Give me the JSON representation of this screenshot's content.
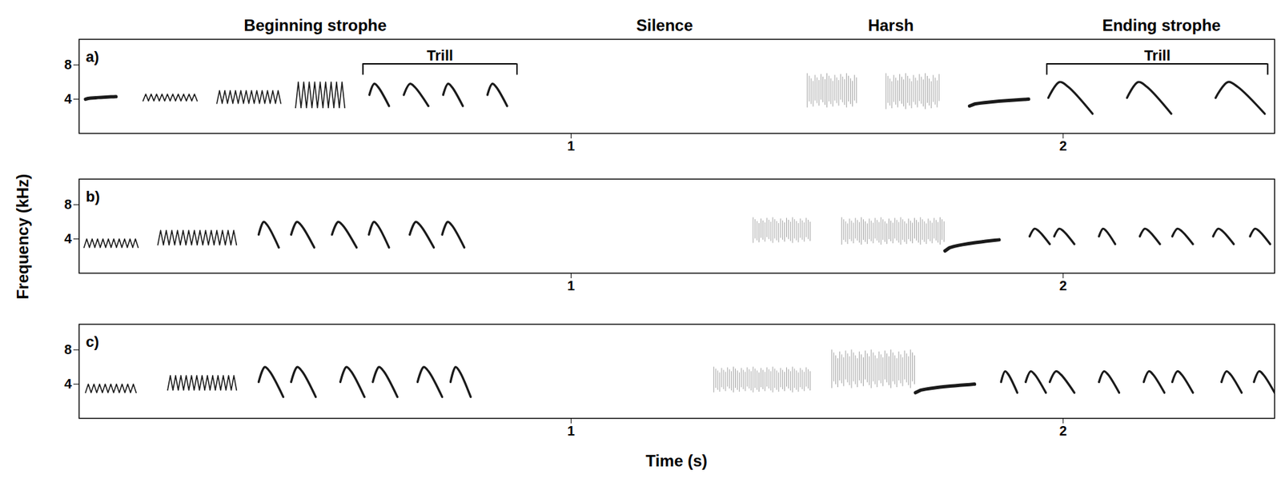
{
  "chart_data": {
    "type": "spectrogram",
    "xlabel": "Time (s)",
    "ylabel": "Frequency (kHz)",
    "xlim": [
      0,
      2.43
    ],
    "ylim": [
      0,
      11
    ],
    "xticks": [
      1,
      2
    ],
    "yticks": [
      4,
      8
    ],
    "color": "#1a1a1a",
    "sections": [
      {
        "label": "Beginning strophe",
        "x": 0.48
      },
      {
        "label": "Silence",
        "x": 1.19
      },
      {
        "label": "Harsh",
        "x": 1.65
      },
      {
        "label": "Ending strophe",
        "x": 2.2
      }
    ],
    "panels": [
      {
        "label": "a)",
        "brackets": [
          {
            "label": "Trill",
            "start": 0.577,
            "end": 0.89
          },
          {
            "label": "Trill",
            "start": 1.967,
            "end": 2.416
          }
        ],
        "elements": {
          "kind": [
            "tone",
            "trill",
            "trill",
            "trill",
            "note",
            "note",
            "note",
            "note",
            "harsh",
            "harsh",
            "tone",
            "note",
            "note",
            "note"
          ],
          "start": [
            0.013,
            0.13,
            0.28,
            0.44,
            0.59,
            0.66,
            0.74,
            0.83,
            1.48,
            1.64,
            1.81,
            1.97,
            2.13,
            2.31
          ],
          "end": [
            0.075,
            0.24,
            0.41,
            0.54,
            0.63,
            0.71,
            0.78,
            0.87,
            1.58,
            1.75,
            1.93,
            2.06,
            2.22,
            2.41
          ],
          "f_low": [
            4.0,
            3.8,
            3.5,
            3.0,
            3.2,
            3.2,
            3.2,
            3.2,
            3.0,
            2.8,
            3.2,
            2.3,
            2.3,
            2.3
          ],
          "f_high": [
            4.3,
            4.6,
            5.0,
            6.0,
            5.8,
            5.8,
            5.8,
            5.8,
            7.0,
            7.0,
            4.0,
            6.0,
            6.0,
            6.0
          ]
        }
      },
      {
        "label": "b)",
        "brackets": [],
        "elements": {
          "kind": [
            "trill",
            "trill",
            "note",
            "note",
            "note",
            "note",
            "note",
            "note",
            "harsh",
            "harsh",
            "tone",
            "note",
            "note",
            "note",
            "note",
            "note",
            "note",
            "note"
          ],
          "start": [
            0.01,
            0.16,
            0.365,
            0.431,
            0.514,
            0.589,
            0.672,
            0.738,
            1.37,
            1.55,
            1.76,
            1.932,
            1.982,
            2.073,
            2.156,
            2.222,
            2.305,
            2.38
          ],
          "end": [
            0.12,
            0.32,
            0.406,
            0.478,
            0.564,
            0.63,
            0.721,
            0.783,
            1.49,
            1.76,
            1.87,
            1.973,
            2.023,
            2.106,
            2.197,
            2.264,
            2.347,
            2.421
          ],
          "f_low": [
            3.0,
            3.3,
            3.0,
            3.0,
            3.0,
            3.0,
            3.0,
            3.0,
            3.5,
            3.3,
            2.6,
            3.4,
            3.4,
            3.4,
            3.4,
            3.4,
            3.4,
            3.4
          ],
          "f_high": [
            4.0,
            5.0,
            6.0,
            6.0,
            6.0,
            6.0,
            6.0,
            6.0,
            6.5,
            6.5,
            3.9,
            5.2,
            5.2,
            5.2,
            5.2,
            5.2,
            5.2,
            5.2
          ]
        }
      },
      {
        "label": "c)",
        "brackets": [],
        "elements": {
          "kind": [
            "trill",
            "trill",
            "note",
            "note",
            "note",
            "note",
            "note",
            "note",
            "harsh",
            "harsh",
            "tone",
            "note",
            "note",
            "note",
            "note",
            "note",
            "note",
            "note",
            "note"
          ],
          "start": [
            0.013,
            0.18,
            0.365,
            0.431,
            0.531,
            0.597,
            0.688,
            0.755,
            1.29,
            1.53,
            1.7,
            1.874,
            1.924,
            1.973,
            2.073,
            2.164,
            2.222,
            2.322,
            2.388
          ],
          "end": [
            0.116,
            0.32,
            0.415,
            0.481,
            0.58,
            0.647,
            0.738,
            0.796,
            1.49,
            1.7,
            1.82,
            1.907,
            1.965,
            2.023,
            2.114,
            2.206,
            2.264,
            2.363,
            2.43
          ],
          "f_low": [
            3.0,
            3.3,
            2.5,
            2.5,
            2.5,
            2.5,
            2.5,
            2.5,
            3.0,
            3.5,
            3.0,
            3.0,
            3.0,
            3.0,
            3.0,
            3.0,
            3.0,
            3.0,
            3.0
          ],
          "f_high": [
            4.0,
            5.0,
            6.0,
            6.0,
            6.0,
            6.0,
            6.0,
            6.0,
            6.0,
            8.0,
            4.0,
            5.5,
            5.5,
            5.5,
            5.5,
            5.5,
            5.5,
            5.5,
            5.5
          ]
        }
      }
    ]
  }
}
